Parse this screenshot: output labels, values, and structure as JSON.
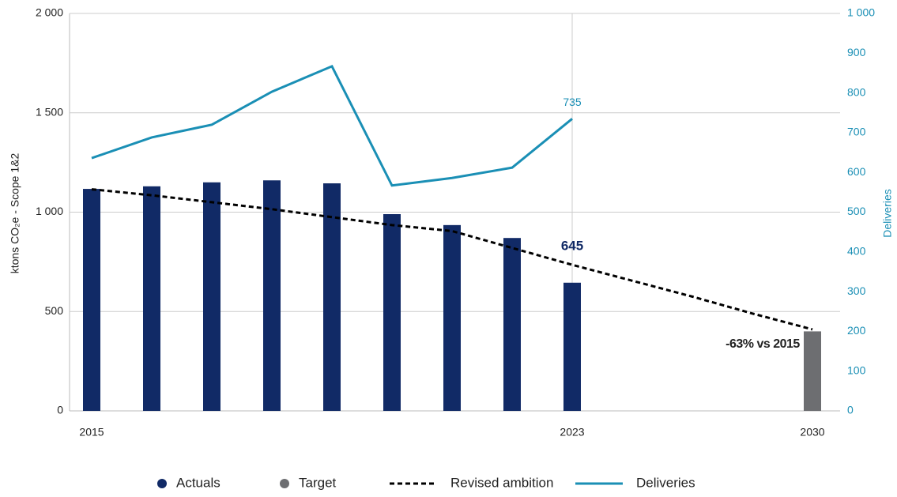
{
  "chart_data": {
    "type": "bar",
    "y_label": "ktons CO₂e - Scope 1&2",
    "y2_label": "Deliveries",
    "annotation": "-63% vs 2015",
    "categories": [
      "2015",
      null,
      null,
      null,
      null,
      null,
      null,
      null,
      "2023",
      null,
      null,
      null,
      "2030"
    ],
    "ylim": [
      0,
      2000
    ],
    "yticks": [
      0,
      500,
      {
        "value": 1000,
        "label": "1 000"
      },
      {
        "value": 1500,
        "label": "1 500"
      },
      {
        "value": 2000,
        "label": "2 000"
      }
    ],
    "y2lim": [
      0,
      1000
    ],
    "y2ticks": [
      0,
      100,
      200,
      300,
      400,
      500,
      600,
      700,
      800,
      900,
      {
        "value": 1000,
        "label": "1 000"
      }
    ],
    "grid": true,
    "series": [
      {
        "name": "Actuals",
        "type": "bar",
        "color": "#112a66",
        "values": [
          1117,
          1130,
          1150,
          1160,
          1145,
          990,
          935,
          870,
          645,
          null,
          null,
          null,
          null
        ]
      },
      {
        "name": "Target",
        "type": "bar",
        "color": "#6d6e71",
        "values": [
          null,
          null,
          null,
          null,
          null,
          null,
          null,
          null,
          null,
          null,
          null,
          null,
          400
        ]
      },
      {
        "name": "Revised ambition",
        "type": "line",
        "dashed": true,
        "color": "#000000",
        "values": [
          1115,
          1085,
          1050,
          1015,
          975,
          935,
          905,
          820,
          735,
          655,
          575,
          490,
          410
        ]
      },
      {
        "name": "Deliveries",
        "type": "line",
        "axis": "y2",
        "color": "#1a8fb5",
        "values": [
          636,
          688,
          720,
          803,
          867,
          567,
          586,
          612,
          735,
          null,
          null,
          null,
          null
        ]
      }
    ]
  }
}
